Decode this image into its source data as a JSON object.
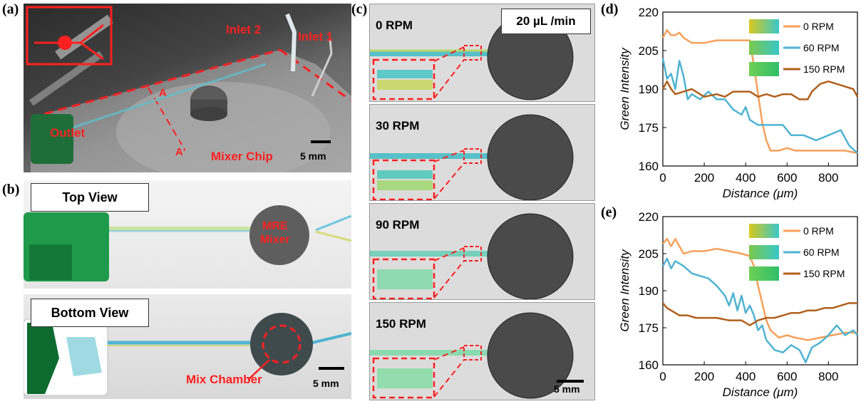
{
  "panels": {
    "a": "(a)",
    "b": "(b)",
    "c": "(c)",
    "d": "(d)",
    "e": "(e)"
  },
  "panel_a": {
    "inlet2": "Inlet 2",
    "inlet1": "Inlet 1",
    "label_a": "A",
    "label_a_prime": "A'",
    "outlet": "Outlet",
    "mixer_chip": "Mixer Chip",
    "scale": "5 mm"
  },
  "panel_b": {
    "top_view": "Top View",
    "bottom_view": "Bottom View",
    "mre_mixer": "MRE\nMixer",
    "mix_chamber": "Mix Chamber",
    "scale": "5 mm"
  },
  "panel_c": {
    "flow": "20 µL /min",
    "rows": [
      "0 RPM",
      "30 RPM",
      "90 RPM",
      "150 RPM"
    ],
    "scale": "5 mm"
  },
  "colors": {
    "orange": "#f5a05a",
    "blue": "#4fb3d1",
    "brown": "#b0601c",
    "red": "#ff2020"
  },
  "chart_data": [
    {
      "type": "line",
      "xlabel": "Distance (μm)",
      "ylabel": "Green Intensity",
      "xlim": [
        0,
        940
      ],
      "ylim": [
        160,
        220
      ],
      "xticks": [
        0,
        200,
        400,
        600,
        800
      ],
      "yticks": [
        160,
        175,
        190,
        205,
        220
      ],
      "legend": "top-right",
      "series": [
        {
          "name": "0 RPM",
          "color": "#f5a05a",
          "x": [
            0,
            20,
            40,
            60,
            80,
            100,
            140,
            200,
            260,
            320,
            380,
            420,
            440,
            460,
            480,
            500,
            520,
            540,
            560,
            600,
            640,
            700,
            760,
            820,
            880,
            940
          ],
          "y": [
            210,
            213,
            211,
            211,
            212,
            210,
            208,
            208,
            209,
            209,
            209,
            209,
            199,
            188,
            177,
            170,
            166,
            166,
            166,
            167,
            166,
            166,
            166,
            166,
            166,
            165
          ]
        },
        {
          "name": "60 RPM",
          "color": "#4fb3d1",
          "x": [
            0,
            20,
            40,
            60,
            80,
            100,
            120,
            140,
            180,
            220,
            260,
            300,
            340,
            380,
            400,
            420,
            460,
            500,
            540,
            580,
            620,
            680,
            740,
            800,
            860,
            900,
            940
          ],
          "y": [
            202,
            194,
            196,
            190,
            201,
            195,
            186,
            188,
            186,
            189,
            186,
            186,
            182,
            180,
            183,
            178,
            176,
            176,
            176,
            176,
            172,
            172,
            170,
            172,
            174,
            168,
            165
          ]
        },
        {
          "name": "150 RPM",
          "color": "#b0601c",
          "x": [
            0,
            20,
            40,
            60,
            100,
            140,
            200,
            260,
            300,
            340,
            380,
            420,
            460,
            500,
            540,
            580,
            620,
            660,
            700,
            720,
            760,
            800,
            840,
            880,
            920,
            940
          ],
          "y": [
            190,
            193,
            190,
            188,
            189,
            190,
            187,
            188,
            187,
            189,
            189,
            189,
            187,
            188,
            187,
            188,
            188,
            186,
            186,
            189,
            192,
            193,
            192,
            191,
            190,
            187
          ]
        }
      ]
    },
    {
      "type": "line",
      "xlabel": "Distance (μm)",
      "ylabel": "Green Intensity",
      "xlim": [
        0,
        940
      ],
      "ylim": [
        160,
        220
      ],
      "xticks": [
        0,
        200,
        400,
        600,
        800
      ],
      "yticks": [
        160,
        175,
        190,
        205,
        220
      ],
      "legend": "top-right",
      "series": [
        {
          "name": "0 RPM",
          "color": "#f5a05a",
          "x": [
            0,
            20,
            40,
            60,
            80,
            100,
            140,
            200,
            260,
            320,
            380,
            420,
            440,
            460,
            480,
            500,
            520,
            560,
            600,
            640,
            700,
            760,
            820,
            880,
            940
          ],
          "y": [
            209,
            211,
            208,
            211,
            208,
            205,
            206,
            206,
            207,
            206,
            205,
            204,
            200,
            192,
            185,
            178,
            174,
            171,
            172,
            171,
            170,
            171,
            172,
            173,
            173
          ]
        },
        {
          "name": "60 RPM",
          "color": "#4fb3d1",
          "x": [
            0,
            20,
            40,
            60,
            100,
            140,
            180,
            220,
            260,
            300,
            320,
            340,
            360,
            380,
            400,
            420,
            440,
            460,
            480,
            500,
            540,
            580,
            620,
            660,
            690,
            720,
            760,
            800,
            840,
            880,
            920,
            940
          ],
          "y": [
            200,
            203,
            199,
            202,
            200,
            197,
            196,
            195,
            192,
            188,
            184,
            189,
            182,
            188,
            181,
            184,
            180,
            174,
            176,
            170,
            166,
            165,
            168,
            166,
            161,
            167,
            169,
            172,
            176,
            172,
            174,
            172
          ]
        },
        {
          "name": "150 RPM",
          "color": "#b0601c",
          "x": [
            0,
            20,
            40,
            80,
            120,
            160,
            200,
            260,
            320,
            380,
            420,
            460,
            500,
            540,
            580,
            620,
            660,
            700,
            740,
            780,
            820,
            860,
            900,
            940
          ],
          "y": [
            185,
            183,
            182,
            180,
            180,
            179,
            179,
            179,
            178,
            178,
            176,
            178,
            179,
            179,
            180,
            181,
            181,
            182,
            182,
            183,
            183,
            184,
            185,
            185
          ]
        }
      ]
    }
  ]
}
